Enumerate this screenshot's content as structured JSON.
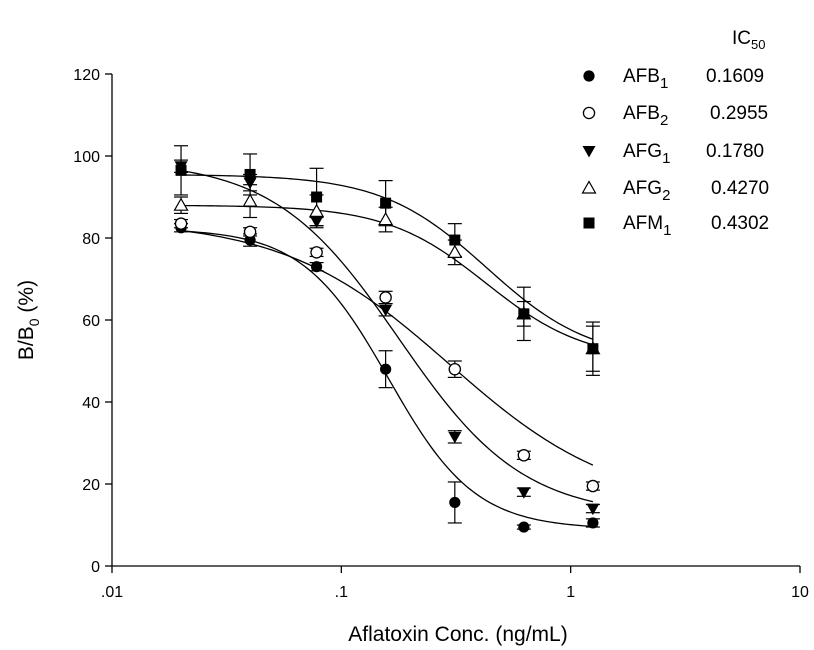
{
  "chart_data": {
    "type": "scatter",
    "x_scale": "log",
    "xlabel": "Aflatoxin Conc. (ng/mL)",
    "ylabel": {
      "main": "B/B",
      "sub": "0",
      "tail": " (%)"
    },
    "xlim": [
      0.01,
      10
    ],
    "ylim": [
      0,
      120
    ],
    "x_ticks": [
      0.01,
      0.1,
      1,
      10
    ],
    "x_tick_labels": [
      ".01",
      ".1",
      "1",
      "10"
    ],
    "y_ticks": [
      0,
      20,
      40,
      60,
      80,
      100,
      120
    ],
    "y_tick_labels": [
      "0",
      "20",
      "40",
      "60",
      "80",
      "100",
      "120"
    ],
    "grid": false,
    "legend_position": "top-right",
    "legend_header": {
      "main": "IC",
      "sub": "50"
    },
    "x": [
      0.02,
      0.04,
      0.078,
      0.156,
      0.3125,
      0.625,
      1.25
    ],
    "series": [
      {
        "name": "AFB",
        "name_sub": "1",
        "ic50": "0.1609",
        "marker": "circle-filled",
        "values": [
          82.5,
          79.5,
          73.0,
          48.0,
          15.5,
          9.5,
          10.5
        ],
        "errors": [
          1.0,
          1.5,
          1.0,
          4.5,
          5.0,
          0.5,
          1.0
        ],
        "fit": {
          "top": 82.3,
          "bottom": 9.0,
          "ic50": 0.1609,
          "hill": 2.3
        }
      },
      {
        "name": "AFB",
        "name_sub": "2",
        "ic50": "0.2955",
        "marker": "circle-open",
        "values": [
          83.5,
          81.5,
          76.5,
          65.5,
          48.0,
          27.0,
          19.5
        ],
        "errors": [
          1.0,
          1.0,
          1.0,
          1.5,
          2.0,
          1.0,
          1.0
        ],
        "fit": {
          "top": 84.5,
          "bottom": 14.0,
          "ic50": 0.2955,
          "hill": 1.2
        }
      },
      {
        "name": "AFG",
        "name_sub": "1",
        "ic50": "0.1780",
        "marker": "triangle-down-filled",
        "values": [
          97.5,
          93.5,
          84.0,
          62.5,
          31.5,
          18.0,
          14.0
        ],
        "errors": [
          1.5,
          2.0,
          1.0,
          1.5,
          1.5,
          1.0,
          1.0
        ],
        "fit": {
          "top": 99.0,
          "bottom": 12.0,
          "ic50": 0.178,
          "hill": 1.6
        }
      },
      {
        "name": "AFG",
        "name_sub": "2",
        "ic50": "0.4270",
        "marker": "triangle-up-open",
        "values": [
          88.0,
          89.0,
          86.5,
          84.5,
          76.5,
          61.5,
          53.0
        ],
        "errors": [
          2.0,
          4.0,
          4.0,
          3.0,
          3.0,
          3.0,
          5.5
        ],
        "fit": {
          "top": 88.0,
          "bottom": 50.0,
          "ic50": 0.427,
          "hill": 2.0
        }
      },
      {
        "name": "AFM",
        "name_sub": "1",
        "ic50": "0.4302",
        "marker": "square-filled",
        "values": [
          96.5,
          95.5,
          90.0,
          88.5,
          79.5,
          61.5,
          53.0
        ],
        "errors": [
          6.0,
          5.0,
          7.0,
          5.5,
          4.0,
          6.5,
          6.5
        ],
        "fit": {
          "top": 95.5,
          "bottom": 50.0,
          "ic50": 0.4302,
          "hill": 1.9
        }
      }
    ]
  }
}
